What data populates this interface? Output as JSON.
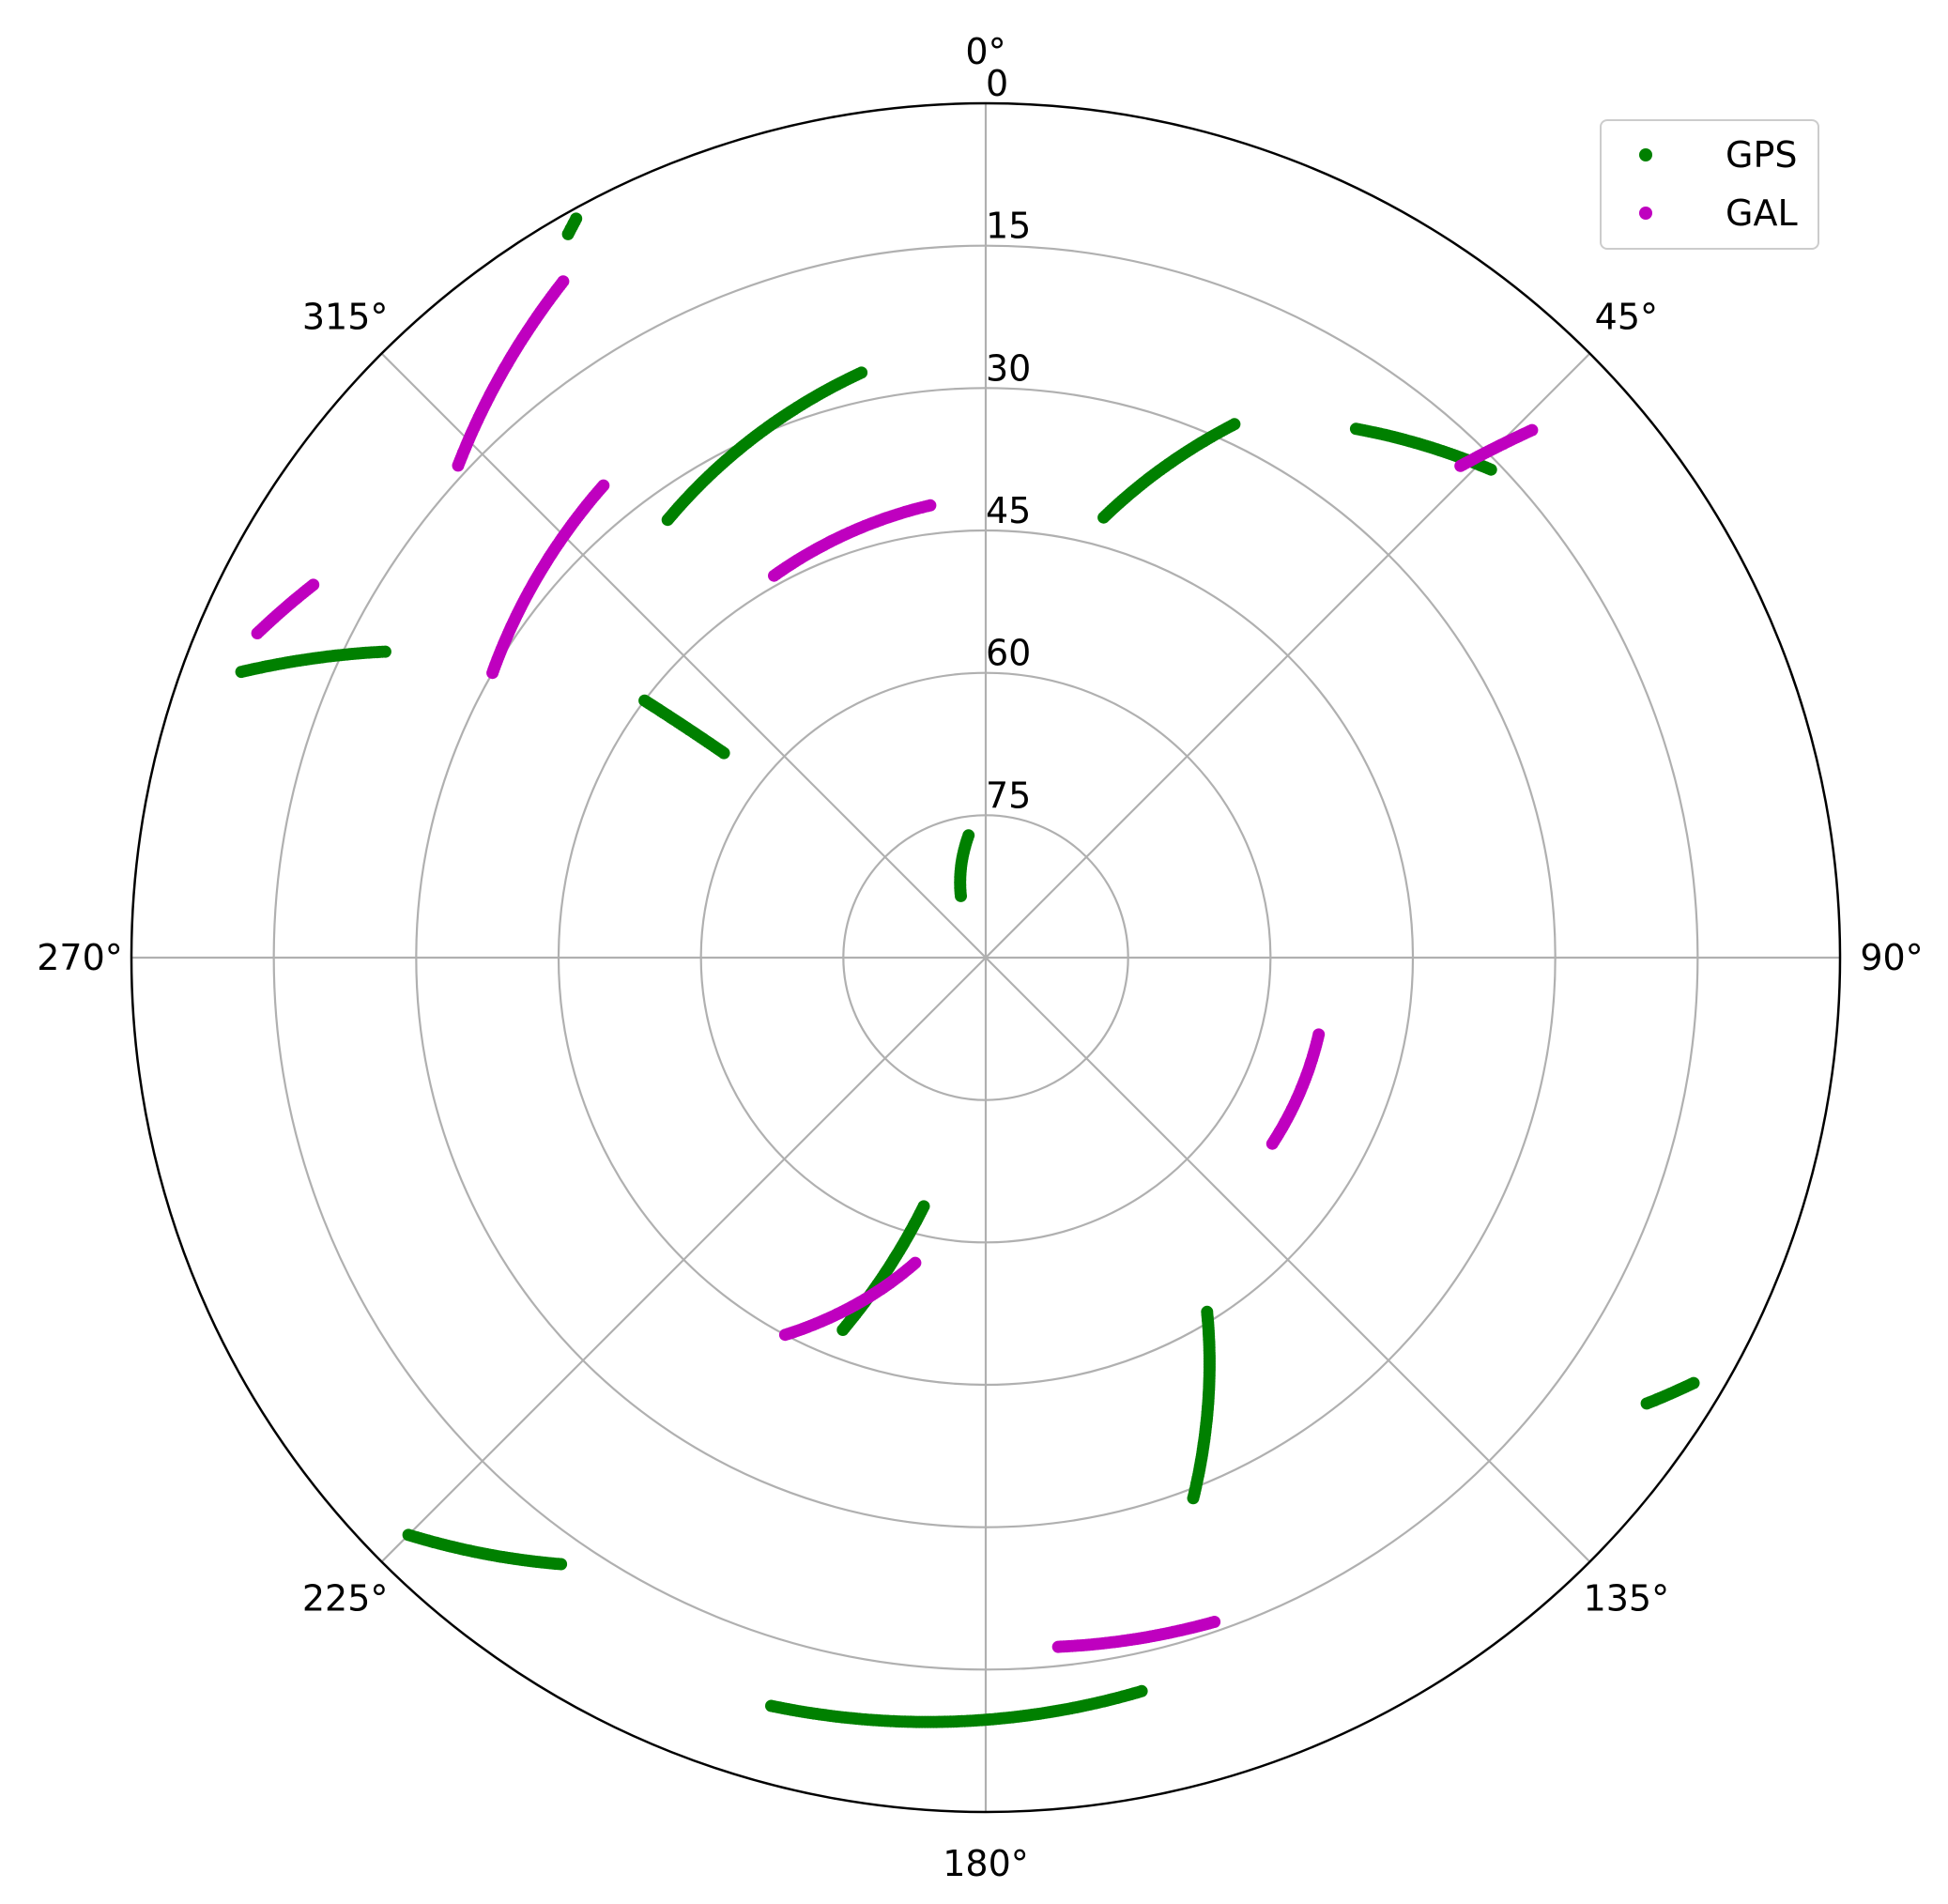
{
  "chart_data": {
    "type": "scatter",
    "projection": "polar",
    "theta_zero_location": "top",
    "theta_direction": "clockwise",
    "r_axis": "elevation_deg_inverted",
    "r_range": [
      90,
      0
    ],
    "r_ticks": [
      "0",
      "15",
      "30",
      "45",
      "60",
      "75"
    ],
    "theta_ticks": [
      "0°",
      "45°",
      "90°",
      "135°",
      "180°",
      "225°",
      "270°",
      "315°"
    ],
    "grid": true,
    "legend_position": "top-right",
    "colors": {
      "GPS": "#008000",
      "GAL": "#bf00bf"
    },
    "series": [
      {
        "name": "GPS",
        "tracks": [
          {
            "start": [
              352,
              77
            ],
            "end": [
              338,
              83
            ]
          },
          {
            "start": [
              307,
              45
            ],
            "end": [
              308,
              55
            ]
          },
          {
            "start": [
              324,
              33
            ],
            "end": [
              348,
              27
            ]
          },
          {
            "start": [
              15,
              42
            ],
            "end": [
              25,
              28
            ]
          },
          {
            "start": [
              35,
              22
            ],
            "end": [
              46,
              16
            ]
          },
          {
            "start": [
              297,
              19
            ],
            "end": [
              291,
              6
            ]
          },
          {
            "start": [
              331,
              1
            ],
            "end": [
              330,
              2
            ]
          },
          {
            "start": [
              148,
              46
            ],
            "end": [
              159,
              29
            ]
          },
          {
            "start": [
              121,
              3
            ],
            "end": [
              124,
              6
            ]
          },
          {
            "start": [
              194,
              63
            ],
            "end": [
              201,
              48
            ]
          },
          {
            "start": [
              168,
              11
            ],
            "end": [
              196,
              8
            ]
          },
          {
            "start": [
              215,
              12
            ],
            "end": [
              225,
              4
            ]
          }
        ]
      },
      {
        "name": "GAL",
        "tracks": [
          {
            "start": [
              331,
              44
            ],
            "end": [
              353,
              42
            ]
          },
          {
            "start": [
              313,
              14
            ],
            "end": [
              328,
              6
            ]
          },
          {
            "start": [
              321,
              26
            ],
            "end": [
              300,
              30
            ]
          },
          {
            "start": [
              294,
              6
            ],
            "end": [
              299,
              9
            ]
          },
          {
            "start": [
              193,
              57
            ],
            "end": [
              208,
              45
            ]
          },
          {
            "start": [
              123,
              54
            ],
            "end": [
              103,
              54
            ]
          },
          {
            "start": [
              161,
              16
            ],
            "end": [
              174,
              17
            ]
          },
          {
            "start": [
              44,
              18
            ],
            "end": [
              46,
              10
            ]
          }
        ]
      }
    ]
  }
}
